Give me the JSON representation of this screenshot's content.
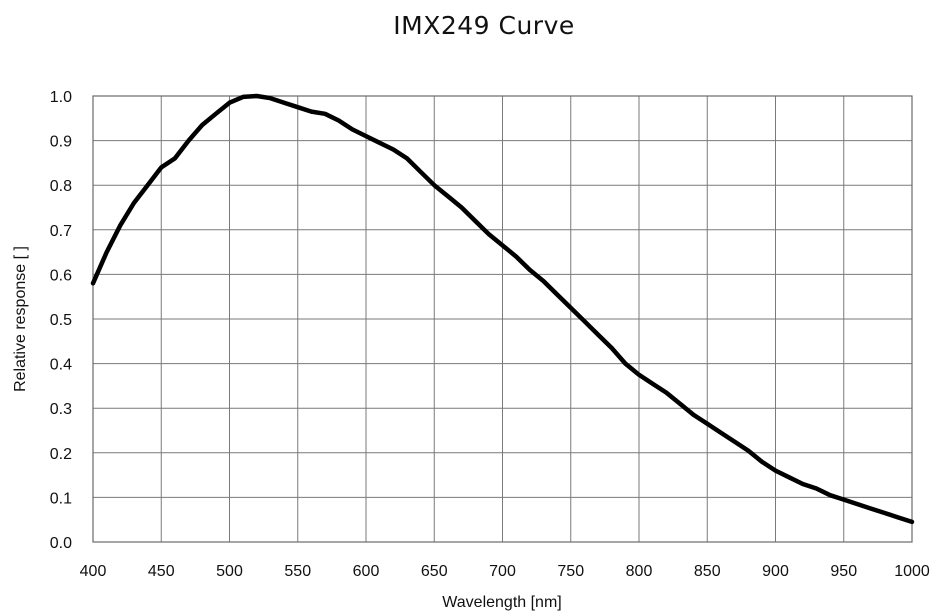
{
  "chart_data": {
    "type": "line",
    "title": "IMX249 Curve",
    "xlabel": "Wavelength [nm]",
    "ylabel": "Relative response [ ]",
    "xlim": [
      400,
      1000
    ],
    "ylim": [
      0,
      1.0
    ],
    "grid": true,
    "x_ticks": [
      "400",
      "450",
      "500",
      "550",
      "600",
      "650",
      "700",
      "750",
      "800",
      "850",
      "900",
      "950",
      "1000"
    ],
    "y_ticks": [
      "0.0",
      "0.1",
      "0.2",
      "0.3",
      "0.4",
      "0.5",
      "0.6",
      "0.7",
      "0.8",
      "0.9",
      "1.0"
    ],
    "series": [
      {
        "color": "#000000",
        "x": [
          400,
          410,
          420,
          430,
          440,
          450,
          460,
          470,
          480,
          490,
          500,
          510,
          520,
          530,
          540,
          550,
          560,
          570,
          580,
          590,
          600,
          610,
          620,
          630,
          640,
          650,
          660,
          670,
          680,
          690,
          700,
          710,
          720,
          730,
          740,
          750,
          760,
          770,
          780,
          790,
          800,
          810,
          820,
          830,
          840,
          850,
          860,
          870,
          880,
          890,
          900,
          910,
          920,
          930,
          940,
          950,
          960,
          970,
          980,
          990,
          1000
        ],
        "y": [
          0.58,
          0.65,
          0.71,
          0.76,
          0.8,
          0.84,
          0.86,
          0.9,
          0.935,
          0.96,
          0.985,
          0.998,
          1.0,
          0.995,
          0.985,
          0.975,
          0.965,
          0.96,
          0.945,
          0.925,
          0.91,
          0.895,
          0.88,
          0.86,
          0.83,
          0.8,
          0.775,
          0.75,
          0.72,
          0.69,
          0.665,
          0.64,
          0.61,
          0.585,
          0.555,
          0.525,
          0.495,
          0.465,
          0.435,
          0.4,
          0.375,
          0.355,
          0.335,
          0.31,
          0.285,
          0.265,
          0.245,
          0.225,
          0.205,
          0.18,
          0.16,
          0.145,
          0.13,
          0.12,
          0.105,
          0.095,
          0.085,
          0.075,
          0.065,
          0.055,
          0.045
        ]
      }
    ]
  }
}
